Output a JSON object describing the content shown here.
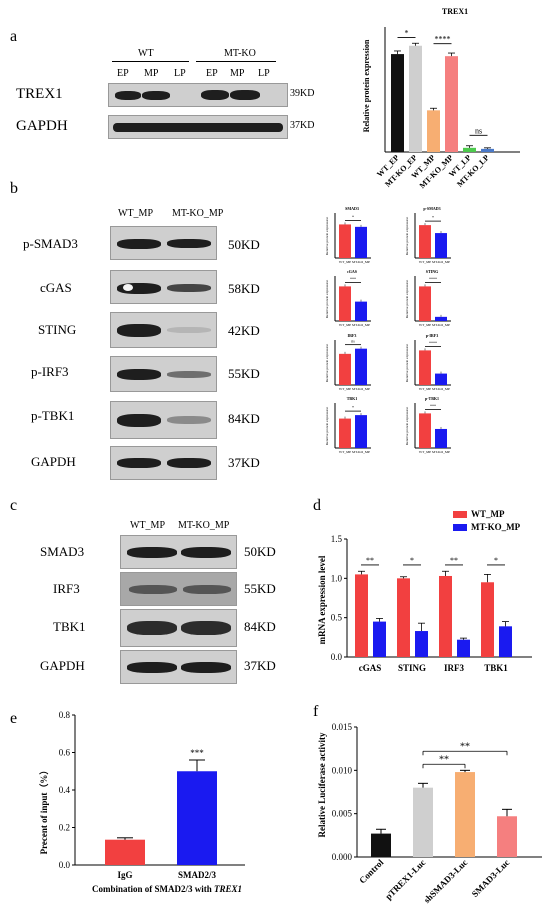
{
  "panels": {
    "a": "a",
    "b": "b",
    "c": "c",
    "d": "d",
    "e": "e",
    "f": "f"
  },
  "panel_a": {
    "group_labels": [
      "WT",
      "MT-KO"
    ],
    "lane_labels": [
      "EP",
      "MP",
      "LP",
      "EP",
      "MP",
      "LP"
    ],
    "rows": [
      {
        "name": "TREX1",
        "kd": "39KD"
      },
      {
        "name": "GAPDH",
        "kd": "37KD"
      }
    ]
  },
  "panel_b": {
    "lane_labels": [
      "WT_MP",
      "MT-KO_MP"
    ],
    "rows": [
      {
        "name": "p-SMAD3",
        "kd": "50KD"
      },
      {
        "name": "cGAS",
        "kd": "58KD"
      },
      {
        "name": "STING",
        "kd": "42KD"
      },
      {
        "name": "p-IRF3",
        "kd": "55KD"
      },
      {
        "name": "p-TBK1",
        "kd": "84KD"
      },
      {
        "name": "GAPDH",
        "kd": "37KD"
      }
    ]
  },
  "panel_c": {
    "lane_labels": [
      "WT_MP",
      "MT-KO_MP"
    ],
    "rows": [
      {
        "name": "SMAD3",
        "kd": "50KD"
      },
      {
        "name": "IRF3",
        "kd": "55KD"
      },
      {
        "name": "TBK1",
        "kd": "84KD"
      },
      {
        "name": "GAPDH",
        "kd": "37KD"
      }
    ]
  },
  "colors": {
    "red": "#f24040",
    "blue": "#1a1af0",
    "black": "#111111",
    "lightgray": "#cfcfcf",
    "orange": "#f7ae72",
    "pink": "#f57f7f",
    "green": "#4dc94d",
    "steelblue": "#4a79c8"
  },
  "chart_data": [
    {
      "id": "a",
      "type": "bar",
      "title": "TREX1",
      "ylabel": "Relative protein expression",
      "categories": [
        "WT_EP",
        "MT-KO_EP",
        "WT_MP",
        "MT-KO_MP",
        "WT_LP",
        "MT-KO_LP"
      ],
      "values": [
        0.47,
        0.51,
        0.2,
        0.46,
        0.02,
        0.015
      ],
      "errors": [
        0.015,
        0.012,
        0.01,
        0.015,
        0.01,
        0.005
      ],
      "bar_colors": [
        "#111111",
        "#cfcfcf",
        "#f7ae72",
        "#f57f7f",
        "#4dc94d",
        "#4a79c8"
      ],
      "ylim": [
        0,
        0.6
      ],
      "significance": [
        {
          "label": "*",
          "from": 0,
          "to": 1
        },
        {
          "label": "****",
          "from": 2,
          "to": 3
        },
        {
          "label": "ns",
          "from": 4,
          "to": 5
        }
      ]
    },
    {
      "id": "b-SMAD3",
      "type": "bar",
      "title": "SMAD3",
      "ylabel": "Relative protein expression",
      "categories": [
        "WT_MP",
        "MT-KO_MP"
      ],
      "values": [
        0.97,
        0.9
      ],
      "ylim": [
        0,
        1.3
      ],
      "bar_colors": [
        "#f24040",
        "#1a1af0"
      ],
      "significance": [
        {
          "label": "*",
          "from": 0,
          "to": 1
        }
      ]
    },
    {
      "id": "b-p-SMAD3",
      "type": "bar",
      "title": "p-SMAD3",
      "ylabel": "Relative protein expression",
      "categories": [
        "WT_MP",
        "MT-KO_MP"
      ],
      "values": [
        0.95,
        0.72
      ],
      "ylim": [
        0,
        1.3
      ],
      "bar_colors": [
        "#f24040",
        "#1a1af0"
      ],
      "significance": [
        {
          "label": "*",
          "from": 0,
          "to": 1
        }
      ]
    },
    {
      "id": "b-cGAS",
      "type": "bar",
      "title": "cGAS",
      "ylabel": "Relative protein expression",
      "categories": [
        "WT_MP",
        "MT-KO_MP"
      ],
      "values": [
        1.0,
        0.56
      ],
      "ylim": [
        0,
        1.3
      ],
      "bar_colors": [
        "#f24040",
        "#1a1af0"
      ],
      "significance": [
        {
          "label": "***",
          "from": 0,
          "to": 1
        }
      ]
    },
    {
      "id": "b-STING",
      "type": "bar",
      "title": "STING",
      "ylabel": "Relative protein expression",
      "categories": [
        "WT_MP",
        "MT-KO_MP"
      ],
      "values": [
        1.0,
        0.12
      ],
      "ylim": [
        0,
        1.3
      ],
      "bar_colors": [
        "#f24040",
        "#1a1af0"
      ],
      "significance": [
        {
          "label": "****",
          "from": 0,
          "to": 1
        }
      ]
    },
    {
      "id": "b-IRF3",
      "type": "bar",
      "title": "IRF3",
      "ylabel": "Relative protein expression",
      "categories": [
        "WT_MP",
        "MT-KO_MP"
      ],
      "values": [
        0.9,
        1.05
      ],
      "ylim": [
        0,
        1.3
      ],
      "bar_colors": [
        "#f24040",
        "#1a1af0"
      ],
      "significance": [
        {
          "label": "ns",
          "from": 0,
          "to": 1
        }
      ]
    },
    {
      "id": "b-p-IRF3",
      "type": "bar",
      "title": "p-IRF3",
      "ylabel": "Relative protein expression",
      "categories": [
        "WT_MP",
        "MT-KO_MP"
      ],
      "values": [
        1.0,
        0.33
      ],
      "ylim": [
        0,
        1.3
      ],
      "bar_colors": [
        "#f24040",
        "#1a1af0"
      ],
      "significance": [
        {
          "label": "****",
          "from": 0,
          "to": 1
        }
      ]
    },
    {
      "id": "b-TBK1",
      "type": "bar",
      "title": "TBK1",
      "ylabel": "Relative protein expression",
      "categories": [
        "WT_MP",
        "MT-KO_MP"
      ],
      "values": [
        0.85,
        0.95
      ],
      "ylim": [
        0,
        1.3
      ],
      "bar_colors": [
        "#f24040",
        "#1a1af0"
      ],
      "significance": [
        {
          "label": "*",
          "from": 0,
          "to": 1
        }
      ]
    },
    {
      "id": "b-p-TBK1",
      "type": "bar",
      "title": "p-TBK1",
      "ylabel": "Relative protein expression",
      "categories": [
        "WT_MP",
        "MT-KO_MP"
      ],
      "values": [
        1.0,
        0.55
      ],
      "ylim": [
        0,
        1.3
      ],
      "bar_colors": [
        "#f24040",
        "#1a1af0"
      ],
      "significance": [
        {
          "label": "***",
          "from": 0,
          "to": 1
        }
      ]
    },
    {
      "id": "d",
      "type": "bar",
      "ylabel": "mRNA expression level",
      "categories": [
        "cGAS",
        "STING",
        "IRF3",
        "TBK1"
      ],
      "series": [
        {
          "name": "WT_MP",
          "values": [
            1.05,
            1.0,
            1.03,
            0.95
          ],
          "errors": [
            0.04,
            0.02,
            0.06,
            0.1
          ]
        },
        {
          "name": "MT-KO_MP",
          "values": [
            0.45,
            0.33,
            0.22,
            0.39
          ],
          "errors": [
            0.04,
            0.1,
            0.02,
            0.06
          ]
        }
      ],
      "ylim": [
        0,
        1.5
      ],
      "yticks": [
        "0.0",
        "0.5",
        "1.0",
        "1.5"
      ],
      "legend": "top-right",
      "significance": [
        "**",
        "*",
        "**",
        "*"
      ]
    },
    {
      "id": "e",
      "type": "bar",
      "ylabel": "Precent of input（%）",
      "xlabel": "Combination of SMAD2/3 with TREX1",
      "categories": [
        "IgG",
        "SMAD2/3"
      ],
      "values": [
        0.135,
        0.5
      ],
      "errors": [
        0.01,
        0.06
      ],
      "bar_colors": [
        "#f24040",
        "#1a1af0"
      ],
      "ylim": [
        0,
        0.8
      ],
      "yticks": [
        "0.0",
        "0.2",
        "0.4",
        "0.6",
        "0.8"
      ],
      "significance": [
        {
          "label": "***",
          "on": 1
        }
      ]
    },
    {
      "id": "f",
      "type": "bar",
      "ylabel": "Relative Luciferase activity",
      "categories": [
        "Control",
        "pTREX1-Luc",
        "shSMAD3-Luc",
        "SMAD3-Luc"
      ],
      "values": [
        0.0027,
        0.008,
        0.0098,
        0.0047
      ],
      "errors": [
        0.0005,
        0.0005,
        0.0002,
        0.0008
      ],
      "bar_colors": [
        "#111111",
        "#cfcfcf",
        "#f7ae72",
        "#f57f7f"
      ],
      "ylim": [
        0,
        0.015
      ],
      "yticks": [
        "0.000",
        "0.005",
        "0.010",
        "0.015"
      ],
      "significance": [
        {
          "label": "**",
          "from": 1,
          "to": 2
        },
        {
          "label": "**",
          "from": 1,
          "to": 3
        }
      ]
    }
  ]
}
